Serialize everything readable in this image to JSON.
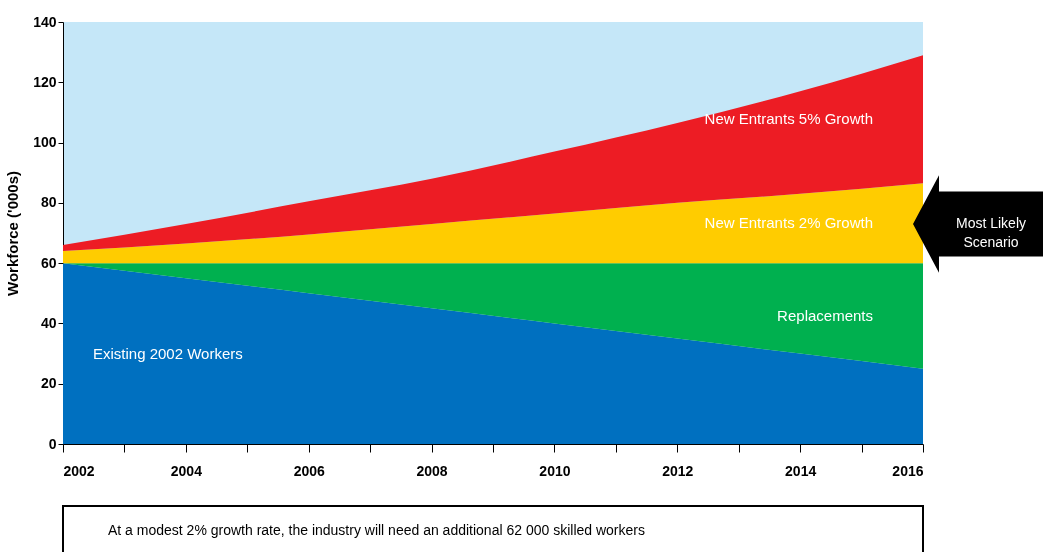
{
  "chart_data": {
    "type": "area",
    "stacked": true,
    "ylabel": "Workforce ('000s)",
    "x": [
      2002,
      2004,
      2006,
      2008,
      2010,
      2012,
      2014,
      2016
    ],
    "xlim": [
      2002,
      2016
    ],
    "xticks": [
      2002,
      {
        "value": 2003,
        "label": null
      },
      2004,
      {
        "value": 2005,
        "label": null
      },
      2006,
      {
        "value": 2007,
        "label": null
      },
      2008,
      {
        "value": 2009,
        "label": null
      },
      2010,
      {
        "value": 2011,
        "label": null
      },
      2012,
      {
        "value": 2013,
        "label": null
      },
      2014,
      {
        "value": 2015,
        "label": null
      },
      2016
    ],
    "ylim": [
      0,
      140
    ],
    "yticks": [
      0,
      20,
      40,
      60,
      80,
      100,
      120,
      140
    ],
    "series": [
      {
        "name": "Existing 2002 Workers",
        "color": "#0070c0",
        "values": [
          60,
          55,
          50,
          45,
          40,
          35,
          30,
          25
        ]
      },
      {
        "name": "Replacements",
        "color": "#00b04f",
        "values": [
          0,
          5,
          10,
          15,
          20,
          25,
          30,
          35
        ]
      },
      {
        "name": "New Entrants 2% Growth",
        "color": "#ffcc00",
        "values": [
          4,
          6.5,
          9.5,
          13,
          16.5,
          20,
          23,
          26.5
        ]
      },
      {
        "name": "New Entrants 5% Growth",
        "color": "#ed1c24",
        "values": [
          2,
          6.5,
          11,
          15,
          20.5,
          26.5,
          34,
          42.5
        ]
      }
    ],
    "annotations": [
      {
        "text": "Most Likely Scenario",
        "x": 2016,
        "y": 73
      },
      "At a modest 2% growth rate, the industry will need an additional 62 000 skilled workers"
    ]
  }
}
